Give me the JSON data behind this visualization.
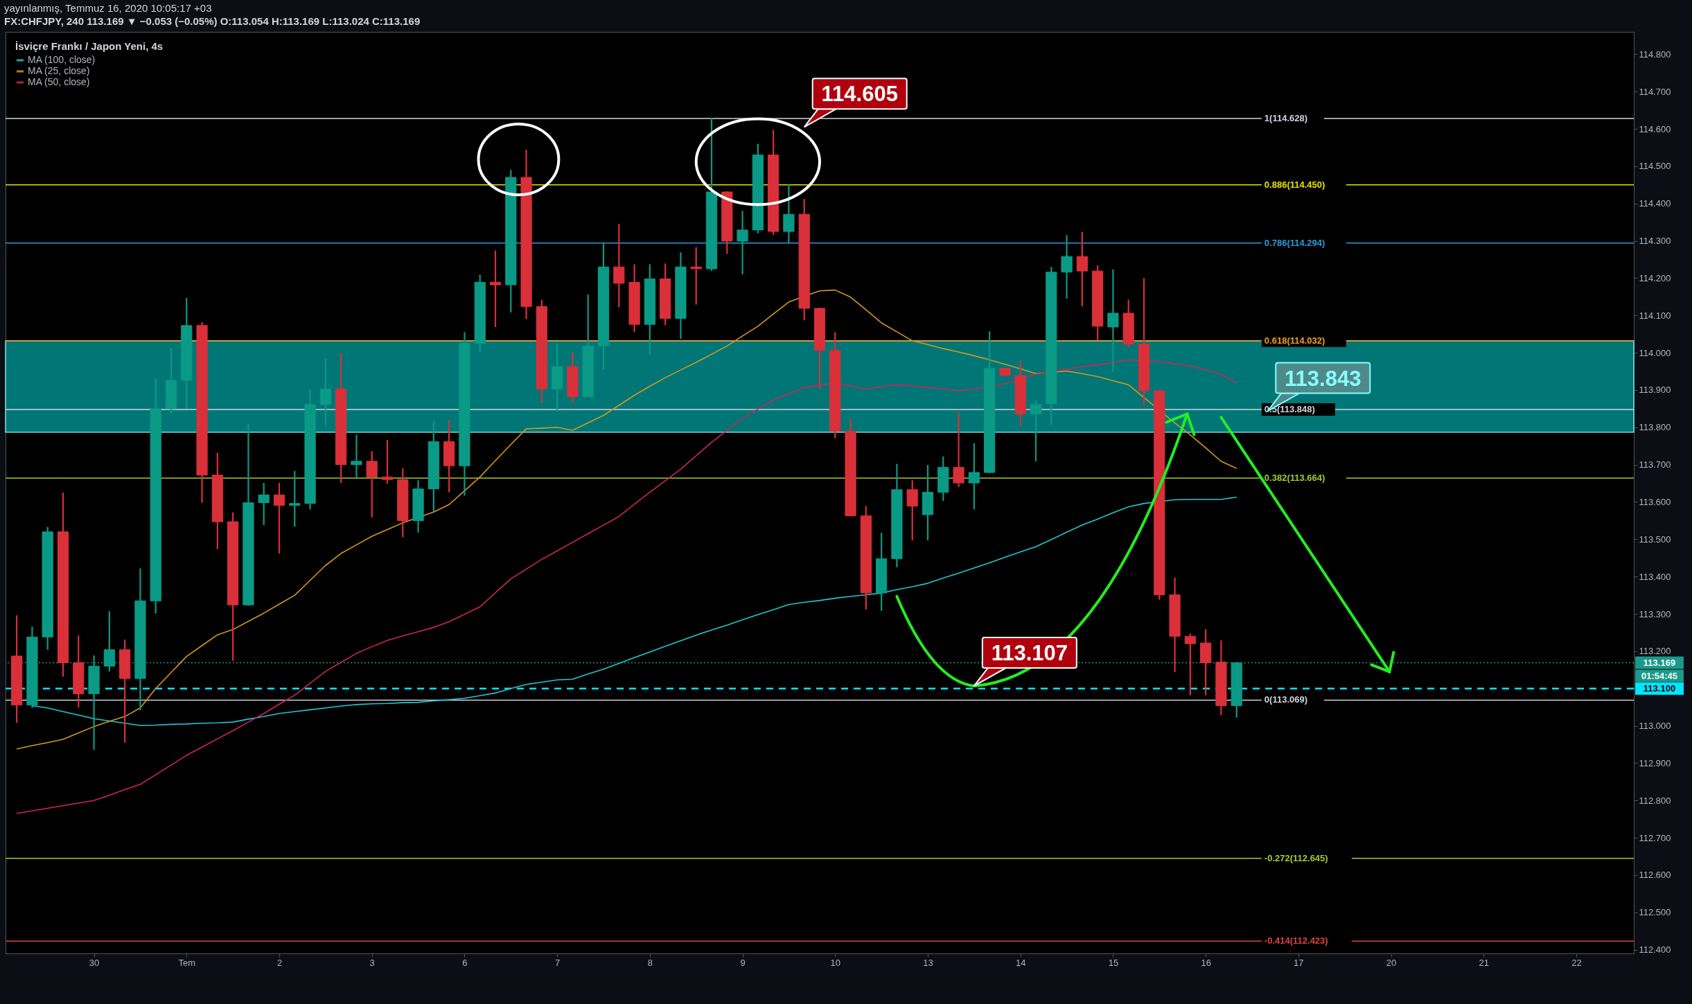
{
  "chart_data": {
    "type": "candlestick",
    "title": "FX:CHFJPY, 240  113.169 ▼ −0.053 (−0.05%) O:113.054 H:113.169 L:113.024 C:113.169",
    "subtitle": "yayınlanmış, Temmuz 16, 2020 10:05:17 +03",
    "legend_title": "İsviçre Frankı / Japon Yeni, 4s",
    "legend": "top left",
    "categories": [
      null,
      null,
      null,
      null,
      null,
      "30",
      null,
      null,
      null,
      null,
      null,
      "Tem",
      null,
      null,
      null,
      null,
      null,
      "2",
      null,
      null,
      null,
      null,
      null,
      "3",
      null,
      null,
      null,
      null,
      null,
      "6",
      null,
      null,
      null,
      null,
      null,
      "7",
      null,
      null,
      null,
      null,
      null,
      "8",
      null,
      null,
      null,
      null,
      null,
      "9",
      null,
      null,
      null,
      null,
      null,
      "10",
      null,
      null,
      null,
      null,
      null,
      "13",
      null,
      null,
      null,
      null,
      null,
      "14",
      null,
      null,
      null,
      null,
      null,
      "15",
      null,
      null,
      null,
      null,
      null,
      "16",
      null,
      null,
      null,
      null,
      null,
      "17",
      null,
      null,
      null,
      null,
      null,
      "20",
      null,
      null,
      null,
      null,
      null,
      "21",
      null,
      null,
      null,
      null,
      null,
      "22",
      null,
      null,
      null
    ],
    "ohlc": [
      [
        113.187,
        113.294,
        113.01,
        113.056
      ],
      [
        113.056,
        113.264,
        113.05,
        113.238
      ],
      [
        113.238,
        113.531,
        113.206,
        113.52
      ],
      [
        113.52,
        113.623,
        113.134,
        113.169
      ],
      [
        113.169,
        113.24,
        113.051,
        113.086
      ],
      [
        113.086,
        113.187,
        112.938,
        113.16
      ],
      [
        113.16,
        113.305,
        113.148,
        113.204
      ],
      [
        113.204,
        113.229,
        112.957,
        113.127
      ],
      [
        113.127,
        113.42,
        113.044,
        113.335
      ],
      [
        113.335,
        113.93,
        113.303,
        113.85
      ],
      [
        113.85,
        114.011,
        113.84,
        113.926
      ],
      [
        113.926,
        114.145,
        113.852,
        114.073
      ],
      [
        114.073,
        114.08,
        113.6,
        113.672
      ],
      [
        113.672,
        113.73,
        113.476,
        113.547
      ],
      [
        113.547,
        113.57,
        113.176,
        113.324
      ],
      [
        113.324,
        113.806,
        113.324,
        113.598
      ],
      [
        113.598,
        113.649,
        113.54,
        113.619
      ],
      [
        113.619,
        113.649,
        113.464,
        113.591
      ],
      [
        113.591,
        113.681,
        113.536,
        113.596
      ],
      [
        113.596,
        113.9,
        113.582,
        113.861
      ],
      [
        113.861,
        113.983,
        113.806,
        113.903
      ],
      [
        113.903,
        113.997,
        113.653,
        113.7
      ],
      [
        113.7,
        113.778,
        113.665,
        113.709
      ],
      [
        113.709,
        113.734,
        113.561,
        113.667
      ],
      [
        113.667,
        113.764,
        113.651,
        113.66
      ],
      [
        113.66,
        113.688,
        113.508,
        113.55
      ],
      [
        113.55,
        113.656,
        113.52,
        113.635
      ],
      [
        113.635,
        113.815,
        113.577,
        113.762
      ],
      [
        113.762,
        113.817,
        113.628,
        113.697
      ],
      [
        113.697,
        114.053,
        113.619,
        114.025
      ],
      [
        114.025,
        114.207,
        114.004,
        114.189
      ],
      [
        114.189,
        114.272,
        114.071,
        114.182
      ],
      [
        114.182,
        114.488,
        114.11,
        114.47
      ],
      [
        114.47,
        114.542,
        114.092,
        114.124
      ],
      [
        114.124,
        114.14,
        113.868,
        113.903
      ],
      [
        113.903,
        114.023,
        113.845,
        113.963
      ],
      [
        113.963,
        114.0,
        113.868,
        113.882
      ],
      [
        113.882,
        114.154,
        113.882,
        114.018
      ],
      [
        114.018,
        114.292,
        113.956,
        114.23
      ],
      [
        114.23,
        114.343,
        114.124,
        114.186
      ],
      [
        114.189,
        114.235,
        114.057,
        114.076
      ],
      [
        114.076,
        114.235,
        113.997,
        114.198
      ],
      [
        114.198,
        114.237,
        114.076,
        114.092
      ],
      [
        114.092,
        114.267,
        114.039,
        114.23
      ],
      [
        114.23,
        114.281,
        114.131,
        114.225
      ],
      [
        114.225,
        114.628,
        114.221,
        114.431
      ],
      [
        114.431,
        114.431,
        114.267,
        114.299
      ],
      [
        114.299,
        114.378,
        114.212,
        114.329
      ],
      [
        114.329,
        114.558,
        114.322,
        114.53
      ],
      [
        114.53,
        114.595,
        114.318,
        114.325
      ],
      [
        114.325,
        114.449,
        114.297,
        114.371
      ],
      [
        114.371,
        114.41,
        114.089,
        114.119
      ],
      [
        114.119,
        114.119,
        113.905,
        114.006
      ],
      [
        114.006,
        114.053,
        113.773,
        113.79
      ],
      [
        113.79,
        113.82,
        113.563,
        113.563
      ],
      [
        113.563,
        113.587,
        113.314,
        113.356
      ],
      [
        113.356,
        113.515,
        113.31,
        113.448
      ],
      [
        113.448,
        113.7,
        113.427,
        113.633
      ],
      [
        113.633,
        113.656,
        113.499,
        113.589
      ],
      [
        113.566,
        113.697,
        113.499,
        113.626
      ],
      [
        113.626,
        113.72,
        113.605,
        113.693
      ],
      [
        113.693,
        113.838,
        113.642,
        113.651
      ],
      [
        113.651,
        113.755,
        113.582,
        113.679
      ],
      [
        113.679,
        114.055,
        113.679,
        113.958
      ],
      [
        113.958,
        113.958,
        113.939,
        113.939
      ],
      [
        113.939,
        113.979,
        113.806,
        113.836
      ],
      [
        113.836,
        113.87,
        113.711,
        113.861
      ],
      [
        113.863,
        114.228,
        113.808,
        114.216
      ],
      [
        114.216,
        114.313,
        114.147,
        114.258
      ],
      [
        114.258,
        114.322,
        114.126,
        114.219
      ],
      [
        114.219,
        114.232,
        114.036,
        114.071
      ],
      [
        114.069,
        114.221,
        113.951,
        114.106
      ],
      [
        114.106,
        114.14,
        114.016,
        114.023
      ],
      [
        114.023,
        114.198,
        113.861,
        113.898
      ],
      [
        113.898,
        113.898,
        113.34,
        113.351
      ],
      [
        113.351,
        113.395,
        113.146,
        113.24
      ],
      [
        113.24,
        113.245,
        113.084,
        113.22
      ],
      [
        113.222,
        113.257,
        113.084,
        113.169
      ],
      [
        113.171,
        113.227,
        113.031,
        113.054
      ],
      [
        113.054,
        113.169,
        113.024,
        113.169
      ],
      null,
      null,
      null,
      null,
      null,
      null,
      null,
      null,
      null,
      null,
      null,
      null,
      null,
      null,
      null,
      null,
      null,
      null,
      null,
      null,
      null,
      null,
      null,
      null,
      null
    ],
    "colors": [
      "#d9303a",
      "#0a9a86",
      "#0a9a86",
      "#d9303a",
      "#d9303a",
      "#0a9a86",
      "#0a9a86",
      "#d9303a",
      "#0a9a86",
      "#0a9a86",
      "#0a9a86",
      "#0a9a86",
      "#d9303a",
      "#d9303a",
      "#d9303a",
      "#0a9a86",
      "#0a9a86",
      "#d9303a",
      "#0a9a86",
      "#0a9a86",
      "#0a9a86",
      "#d9303a",
      "#0a9a86",
      "#d9303a",
      "#d9303a",
      "#d9303a",
      "#0a9a86",
      "#0a9a86",
      "#d9303a",
      "#0a9a86",
      "#0a9a86",
      "#d9303a",
      "#0a9a86",
      "#d9303a",
      "#d9303a",
      "#0a9a86",
      "#d9303a",
      "#0a9a86",
      "#0a9a86",
      "#d9303a",
      "#d9303a",
      "#0a9a86",
      "#d9303a",
      "#0a9a86",
      "#d9303a",
      "#0a9a86",
      "#d9303a",
      "#0a9a86",
      "#0a9a86",
      "#d9303a",
      "#0a9a86",
      "#d9303a",
      "#d9303a",
      "#d9303a",
      "#d9303a",
      "#d9303a",
      "#0a9a86",
      "#0a9a86",
      "#d9303a",
      "#0a9a86",
      "#0a9a86",
      "#d9303a",
      "#0a9a86",
      "#0a9a86",
      "#d9303a",
      "#d9303a",
      "#0a9a86",
      "#0a9a86",
      "#0a9a86",
      "#d9303a",
      "#d9303a",
      "#0a9a86",
      "#d9303a",
      "#d9303a",
      "#d9303a",
      "#d9303a",
      "#d9303a",
      "#d9303a",
      "#d9303a",
      "#0a9a86",
      null,
      null,
      null,
      null,
      null,
      null,
      null,
      null,
      null,
      null,
      null,
      null,
      null,
      null,
      null,
      null,
      null,
      null,
      null,
      null,
      null,
      null,
      null,
      null,
      null
    ],
    "series": [
      {
        "name": "MA (100, close)",
        "type": "line",
        "color": "#1fc7d4",
        "values": [
          null,
          113.054,
          113.048,
          113.038,
          113.029,
          113.019,
          113.013,
          113.007,
          113.001,
          113.002,
          113.004,
          113.005,
          113.007,
          113.008,
          113.01,
          113.018,
          113.025,
          113.033,
          113.038,
          113.043,
          113.048,
          113.053,
          113.057,
          113.059,
          113.06,
          113.062,
          113.063,
          113.067,
          113.07,
          113.074,
          113.081,
          113.088,
          113.1,
          113.111,
          113.117,
          113.123,
          113.125,
          113.139,
          113.152,
          113.167,
          113.183,
          113.198,
          113.213,
          113.228,
          113.243,
          113.257,
          113.27,
          113.284,
          113.298,
          113.311,
          113.325,
          113.331,
          113.336,
          113.342,
          113.347,
          113.351,
          113.356,
          113.365,
          113.373,
          113.382,
          113.396,
          113.409,
          113.423,
          113.437,
          113.452,
          113.466,
          113.48,
          113.499,
          113.519,
          113.538,
          113.554,
          113.571,
          113.587,
          113.596,
          null,
          113.606,
          113.607,
          113.607,
          113.607,
          113.613,
          null,
          null,
          null,
          null,
          null,
          null,
          null,
          null,
          null,
          null,
          null,
          null,
          null,
          null,
          null,
          null,
          null,
          null,
          null,
          null,
          null,
          null,
          null,
          null,
          null
        ]
      },
      {
        "name": "MA (25, close)",
        "type": "line",
        "color": "#d39a1e",
        "values": [
          112.938,
          112.947,
          112.955,
          112.964,
          112.981,
          112.998,
          113.012,
          113.025,
          113.048,
          113.1,
          113.143,
          113.186,
          113.215,
          113.244,
          113.258,
          113.28,
          113.302,
          113.326,
          113.35,
          113.39,
          113.43,
          113.462,
          113.485,
          113.508,
          113.526,
          113.544,
          null,
          113.573,
          113.593,
          113.63,
          113.667,
          113.711,
          113.754,
          113.796,
          113.798,
          113.8,
          113.792,
          113.812,
          113.832,
          113.859,
          113.886,
          113.91,
          113.933,
          113.954,
          113.974,
          113.996,
          114.018,
          114.045,
          114.071,
          114.104,
          114.136,
          null,
          114.166,
          114.168,
          114.149,
          114.115,
          114.08,
          114.056,
          114.032,
          114.022,
          114.011,
          114.002,
          113.992,
          113.981,
          113.969,
          113.957,
          113.944,
          null,
          113.951,
          113.944,
          113.936,
          113.925,
          113.914,
          null,
          null,
          113.812,
          113.78,
          113.745,
          113.709,
          113.69,
          null,
          null,
          null,
          null,
          null,
          null,
          null,
          null,
          null,
          null,
          null,
          null,
          null,
          null,
          null,
          null,
          null,
          null,
          null,
          null,
          null,
          null,
          null,
          null,
          null
        ]
      },
      {
        "name": "MA (50, close)",
        "type": "line",
        "color": "#d0245a",
        "values": [
          112.765,
          112.772,
          112.779,
          112.786,
          112.793,
          112.8,
          112.814,
          112.829,
          112.843,
          112.869,
          112.895,
          112.921,
          112.943,
          112.965,
          112.987,
          113.01,
          113.033,
          113.058,
          113.082,
          113.114,
          113.146,
          113.17,
          113.194,
          113.212,
          113.229,
          113.241,
          113.252,
          113.264,
          113.279,
          113.299,
          113.319,
          113.357,
          113.394,
          113.42,
          113.446,
          113.469,
          113.492,
          113.515,
          113.538,
          113.561,
          113.594,
          113.626,
          113.657,
          113.688,
          113.724,
          113.76,
          113.792,
          113.824,
          113.849,
          113.873,
          113.89,
          113.907,
          null,
          113.919,
          113.911,
          113.903,
          113.909,
          113.914,
          113.911,
          113.907,
          113.903,
          113.898,
          113.902,
          null,
          113.917,
          113.93,
          113.942,
          null,
          113.956,
          113.962,
          113.967,
          113.974,
          113.981,
          113.979,
          113.976,
          113.971,
          113.965,
          113.954,
          113.942,
          113.919,
          null,
          null,
          null,
          null,
          null,
          null,
          null,
          null,
          null,
          null,
          null,
          null,
          null,
          null,
          null,
          null,
          null,
          null,
          null,
          null,
          null,
          null,
          null,
          null,
          null
        ]
      }
    ],
    "ylim": [
      112.39,
      114.86
    ],
    "yticks": [
      {
        "value": 112.4,
        "label": "112.400"
      },
      {
        "value": 112.5,
        "label": "112.500"
      },
      {
        "value": 112.6,
        "label": "112.600"
      },
      {
        "value": 112.7,
        "label": "112.700"
      },
      {
        "value": 112.8,
        "label": "112.800"
      },
      {
        "value": 112.9,
        "label": "112.900"
      },
      {
        "value": 113.0,
        "label": "113.000"
      },
      {
        "value": 113.1,
        "label": null
      },
      {
        "value": 113.2,
        "label": "113.200"
      },
      {
        "value": 113.3,
        "label": "113.300"
      },
      {
        "value": 113.4,
        "label": "113.400"
      },
      {
        "value": 113.5,
        "label": "113.500"
      },
      {
        "value": 113.6,
        "label": "113.600"
      },
      {
        "value": 113.7,
        "label": "113.700"
      },
      {
        "value": 113.8,
        "label": "113.800"
      },
      {
        "value": 113.9,
        "label": "113.900"
      },
      {
        "value": 114.0,
        "label": "114.000"
      },
      {
        "value": 114.1,
        "label": "114.100"
      },
      {
        "value": 114.2,
        "label": "114.200"
      },
      {
        "value": 114.3,
        "label": "114.300"
      },
      {
        "value": 114.4,
        "label": "114.400"
      },
      {
        "value": 114.5,
        "label": "114.500"
      },
      {
        "value": 114.6,
        "label": "114.600"
      },
      {
        "value": 114.7,
        "label": "114.700"
      },
      {
        "value": 114.8,
        "label": "114.800"
      }
    ],
    "ref_lines": [
      {
        "axis": "y",
        "value": 114.628,
        "label": "1(114.628)",
        "color": "#d1d4dc"
      },
      {
        "axis": "y",
        "value": 114.45,
        "label": "0.886(114.450)",
        "color": "#e5e500"
      },
      {
        "axis": "y",
        "value": 114.294,
        "label": "0.786(114.294)",
        "color": "#2a9be0"
      },
      {
        "axis": "y",
        "value": 114.032,
        "label": "0.618(114.032)",
        "color": "#f0a020"
      },
      {
        "axis": "y",
        "value": 113.848,
        "label": "0.5(113.848)",
        "color": "#d1d4dc"
      },
      {
        "axis": "y",
        "value": 113.664,
        "label": "0.382(113.664)",
        "color": "#a8c832"
      },
      {
        "axis": "y",
        "value": 113.069,
        "label": "0(113.069)",
        "color": "#d1d4dc"
      },
      {
        "axis": "y",
        "value": 112.645,
        "label": "-0.272(112.645)",
        "color": "#a8c832"
      },
      {
        "axis": "y",
        "value": 112.423,
        "label": "-0.414(112.423)",
        "color": "#e04040"
      },
      {
        "axis": "y",
        "value": 113.169,
        "label": "113.169",
        "color": "#1a9a8a",
        "line_style": "dotted"
      },
      {
        "axis": "y",
        "value": 113.1,
        "label": "113.100",
        "color": "#00e5ff",
        "line_style": "dashed"
      }
    ],
    "bands": [
      {
        "axis": "y",
        "from": 113.787,
        "to": 114.032,
        "color": "#008b8b"
      }
    ],
    "annotations": [
      "114.605",
      "113.107",
      "113.843",
      "01:54:45"
    ]
  }
}
